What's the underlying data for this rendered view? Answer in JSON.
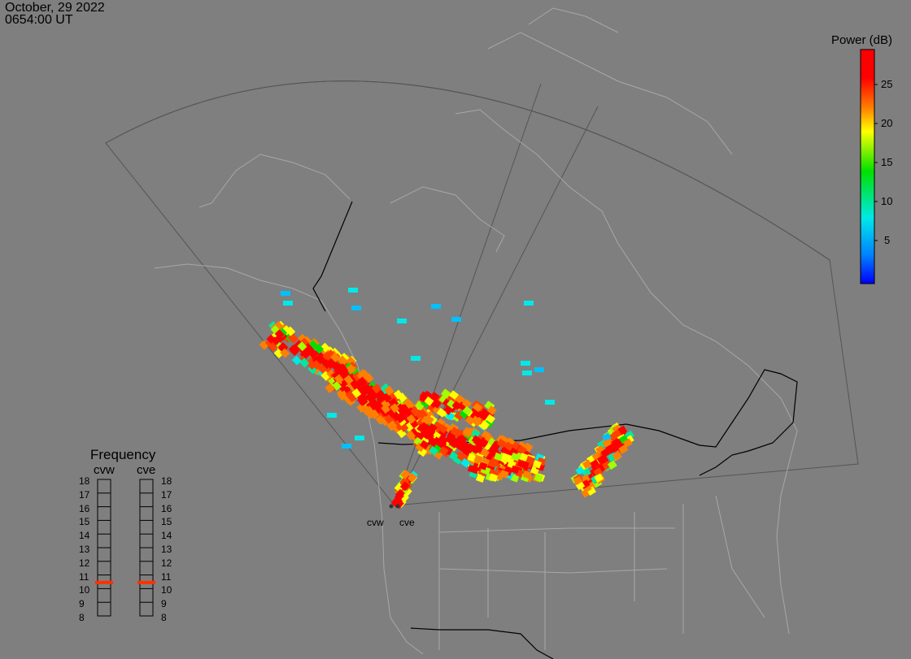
{
  "header": {
    "date": "October, 29 2022",
    "time": "0654:00 UT"
  },
  "colorbar": {
    "title": "Power (dB)",
    "ticks": [
      "25",
      "20",
      "15",
      "10",
      "5"
    ],
    "colors": [
      "#ff0000",
      "#ff8000",
      "#ffff00",
      "#00e000",
      "#00e0e0",
      "#0000ff"
    ]
  },
  "frequency_panel": {
    "title": "Frequency",
    "columns": [
      {
        "name": "cvw",
        "selected_mhz": 11
      },
      {
        "name": "cve",
        "selected_mhz": 11
      }
    ],
    "levels": [
      "18",
      "17",
      "16",
      "15",
      "14",
      "13",
      "12",
      "11",
      "10",
      "9",
      "8"
    ],
    "marker_color": "#ff3000"
  },
  "sites": {
    "west": "cvw",
    "east": "cve"
  }
}
